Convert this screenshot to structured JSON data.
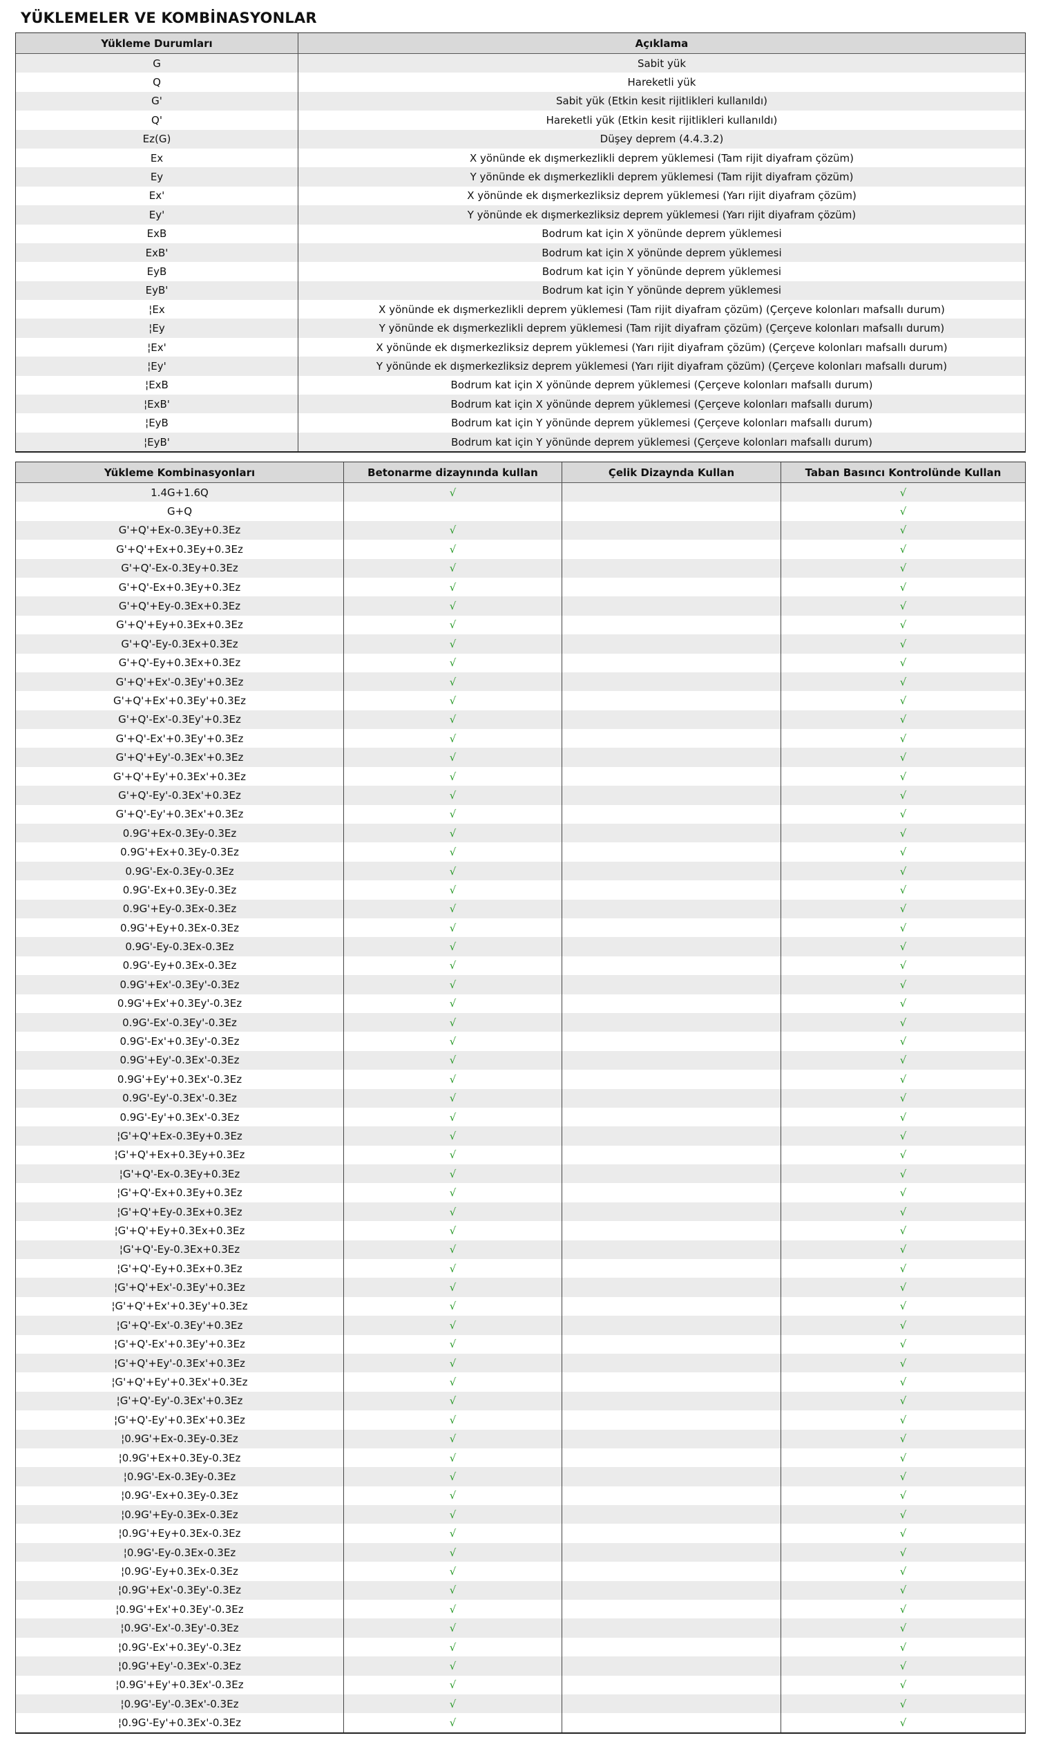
{
  "title": "YÜKLEMELER VE KOMBİNASYONLAR",
  "colors": {
    "check": "#2a9a2a",
    "header_bg": "#d9d9d9",
    "alt_row_bg": "#ebebeb"
  },
  "check_icon": "check-mark-icon",
  "check_glyph": "√",
  "load_cases": {
    "headers": [
      "Yükleme Durumları",
      "Açıklama"
    ],
    "rows": [
      [
        "G",
        "Sabit yük"
      ],
      [
        "Q",
        "Hareketli yük"
      ],
      [
        "G'",
        "Sabit yük (Etkin kesit rijitlikleri kullanıldı)"
      ],
      [
        "Q'",
        "Hareketli yük (Etkin kesit rijitlikleri kullanıldı)"
      ],
      [
        "Ez(G)",
        "Düşey deprem (4.4.3.2)"
      ],
      [
        "Ex",
        "X yönünde ek dışmerkezlikli deprem yüklemesi (Tam rijit diyafram çözüm)"
      ],
      [
        "Ey",
        "Y yönünde ek dışmerkezlikli deprem yüklemesi (Tam rijit diyafram çözüm)"
      ],
      [
        "Ex'",
        "X yönünde ek dışmerkezliksiz deprem yüklemesi (Yarı rijit diyafram çözüm)"
      ],
      [
        "Ey'",
        "Y yönünde ek dışmerkezliksiz deprem yüklemesi (Yarı rijit diyafram çözüm)"
      ],
      [
        "ExB",
        "Bodrum kat için X yönünde deprem yüklemesi"
      ],
      [
        "ExB'",
        "Bodrum kat için X yönünde deprem yüklemesi"
      ],
      [
        "EyB",
        "Bodrum kat için Y yönünde deprem yüklemesi"
      ],
      [
        "EyB'",
        "Bodrum kat için Y yönünde deprem yüklemesi"
      ],
      [
        "¦Ex",
        "X yönünde ek dışmerkezlikli deprem yüklemesi (Tam rijit diyafram çözüm) (Çerçeve kolonları mafsallı durum)"
      ],
      [
        "¦Ey",
        "Y yönünde ek dışmerkezlikli deprem yüklemesi (Tam rijit diyafram çözüm) (Çerçeve kolonları mafsallı durum)"
      ],
      [
        "¦Ex'",
        "X yönünde ek dışmerkezliksiz deprem yüklemesi (Yarı rijit diyafram çözüm) (Çerçeve kolonları mafsallı durum)"
      ],
      [
        "¦Ey'",
        "Y yönünde ek dışmerkezliksiz deprem yüklemesi (Yarı rijit diyafram çözüm) (Çerçeve kolonları mafsallı durum)"
      ],
      [
        "¦ExB",
        "Bodrum kat için X yönünde deprem yüklemesi (Çerçeve kolonları mafsallı durum)"
      ],
      [
        "¦ExB'",
        "Bodrum kat için X yönünde deprem yüklemesi (Çerçeve kolonları mafsallı durum)"
      ],
      [
        "¦EyB",
        "Bodrum kat için Y yönünde deprem yüklemesi (Çerçeve kolonları mafsallı durum)"
      ],
      [
        "¦EyB'",
        "Bodrum kat için Y yönünde deprem yüklemesi (Çerçeve kolonları mafsallı durum)"
      ]
    ]
  },
  "combinations": {
    "headers": [
      "Yükleme Kombinasyonları",
      "Betonarme dizaynında kullan",
      "Çelik  Dizaynda Kullan",
      "Taban Basıncı Kontrolünde Kullan"
    ],
    "rows": [
      {
        "name": "1.4G+1.6Q",
        "beton": true,
        "celik": false,
        "taban": true
      },
      {
        "name": "G+Q",
        "beton": false,
        "celik": false,
        "taban": true
      },
      {
        "name": "G'+Q'+Ex-0.3Ey+0.3Ez",
        "beton": true,
        "celik": false,
        "taban": true
      },
      {
        "name": "G'+Q'+Ex+0.3Ey+0.3Ez",
        "beton": true,
        "celik": false,
        "taban": true
      },
      {
        "name": "G'+Q'-Ex-0.3Ey+0.3Ez",
        "beton": true,
        "celik": false,
        "taban": true
      },
      {
        "name": "G'+Q'-Ex+0.3Ey+0.3Ez",
        "beton": true,
        "celik": false,
        "taban": true
      },
      {
        "name": "G'+Q'+Ey-0.3Ex+0.3Ez",
        "beton": true,
        "celik": false,
        "taban": true
      },
      {
        "name": "G'+Q'+Ey+0.3Ex+0.3Ez",
        "beton": true,
        "celik": false,
        "taban": true
      },
      {
        "name": "G'+Q'-Ey-0.3Ex+0.3Ez",
        "beton": true,
        "celik": false,
        "taban": true
      },
      {
        "name": "G'+Q'-Ey+0.3Ex+0.3Ez",
        "beton": true,
        "celik": false,
        "taban": true
      },
      {
        "name": "G'+Q'+Ex'-0.3Ey'+0.3Ez",
        "beton": true,
        "celik": false,
        "taban": true
      },
      {
        "name": "G'+Q'+Ex'+0.3Ey'+0.3Ez",
        "beton": true,
        "celik": false,
        "taban": true
      },
      {
        "name": "G'+Q'-Ex'-0.3Ey'+0.3Ez",
        "beton": true,
        "celik": false,
        "taban": true
      },
      {
        "name": "G'+Q'-Ex'+0.3Ey'+0.3Ez",
        "beton": true,
        "celik": false,
        "taban": true
      },
      {
        "name": "G'+Q'+Ey'-0.3Ex'+0.3Ez",
        "beton": true,
        "celik": false,
        "taban": true
      },
      {
        "name": "G'+Q'+Ey'+0.3Ex'+0.3Ez",
        "beton": true,
        "celik": false,
        "taban": true
      },
      {
        "name": "G'+Q'-Ey'-0.3Ex'+0.3Ez",
        "beton": true,
        "celik": false,
        "taban": true
      },
      {
        "name": "G'+Q'-Ey'+0.3Ex'+0.3Ez",
        "beton": true,
        "celik": false,
        "taban": true
      },
      {
        "name": "0.9G'+Ex-0.3Ey-0.3Ez",
        "beton": true,
        "celik": false,
        "taban": true
      },
      {
        "name": "0.9G'+Ex+0.3Ey-0.3Ez",
        "beton": true,
        "celik": false,
        "taban": true
      },
      {
        "name": "0.9G'-Ex-0.3Ey-0.3Ez",
        "beton": true,
        "celik": false,
        "taban": true
      },
      {
        "name": "0.9G'-Ex+0.3Ey-0.3Ez",
        "beton": true,
        "celik": false,
        "taban": true
      },
      {
        "name": "0.9G'+Ey-0.3Ex-0.3Ez",
        "beton": true,
        "celik": false,
        "taban": true
      },
      {
        "name": "0.9G'+Ey+0.3Ex-0.3Ez",
        "beton": true,
        "celik": false,
        "taban": true
      },
      {
        "name": "0.9G'-Ey-0.3Ex-0.3Ez",
        "beton": true,
        "celik": false,
        "taban": true
      },
      {
        "name": "0.9G'-Ey+0.3Ex-0.3Ez",
        "beton": true,
        "celik": false,
        "taban": true
      },
      {
        "name": "0.9G'+Ex'-0.3Ey'-0.3Ez",
        "beton": true,
        "celik": false,
        "taban": true
      },
      {
        "name": "0.9G'+Ex'+0.3Ey'-0.3Ez",
        "beton": true,
        "celik": false,
        "taban": true
      },
      {
        "name": "0.9G'-Ex'-0.3Ey'-0.3Ez",
        "beton": true,
        "celik": false,
        "taban": true
      },
      {
        "name": "0.9G'-Ex'+0.3Ey'-0.3Ez",
        "beton": true,
        "celik": false,
        "taban": true
      },
      {
        "name": "0.9G'+Ey'-0.3Ex'-0.3Ez",
        "beton": true,
        "celik": false,
        "taban": true
      },
      {
        "name": "0.9G'+Ey'+0.3Ex'-0.3Ez",
        "beton": true,
        "celik": false,
        "taban": true
      },
      {
        "name": "0.9G'-Ey'-0.3Ex'-0.3Ez",
        "beton": true,
        "celik": false,
        "taban": true
      },
      {
        "name": "0.9G'-Ey'+0.3Ex'-0.3Ez",
        "beton": true,
        "celik": false,
        "taban": true
      },
      {
        "name": "¦G'+Q'+Ex-0.3Ey+0.3Ez",
        "beton": true,
        "celik": false,
        "taban": true
      },
      {
        "name": "¦G'+Q'+Ex+0.3Ey+0.3Ez",
        "beton": true,
        "celik": false,
        "taban": true
      },
      {
        "name": "¦G'+Q'-Ex-0.3Ey+0.3Ez",
        "beton": true,
        "celik": false,
        "taban": true
      },
      {
        "name": "¦G'+Q'-Ex+0.3Ey+0.3Ez",
        "beton": true,
        "celik": false,
        "taban": true
      },
      {
        "name": "¦G'+Q'+Ey-0.3Ex+0.3Ez",
        "beton": true,
        "celik": false,
        "taban": true
      },
      {
        "name": "¦G'+Q'+Ey+0.3Ex+0.3Ez",
        "beton": true,
        "celik": false,
        "taban": true
      },
      {
        "name": "¦G'+Q'-Ey-0.3Ex+0.3Ez",
        "beton": true,
        "celik": false,
        "taban": true
      },
      {
        "name": "¦G'+Q'-Ey+0.3Ex+0.3Ez",
        "beton": true,
        "celik": false,
        "taban": true
      },
      {
        "name": "¦G'+Q'+Ex'-0.3Ey'+0.3Ez",
        "beton": true,
        "celik": false,
        "taban": true
      },
      {
        "name": "¦G'+Q'+Ex'+0.3Ey'+0.3Ez",
        "beton": true,
        "celik": false,
        "taban": true
      },
      {
        "name": "¦G'+Q'-Ex'-0.3Ey'+0.3Ez",
        "beton": true,
        "celik": false,
        "taban": true
      },
      {
        "name": "¦G'+Q'-Ex'+0.3Ey'+0.3Ez",
        "beton": true,
        "celik": false,
        "taban": true
      },
      {
        "name": "¦G'+Q'+Ey'-0.3Ex'+0.3Ez",
        "beton": true,
        "celik": false,
        "taban": true
      },
      {
        "name": "¦G'+Q'+Ey'+0.3Ex'+0.3Ez",
        "beton": true,
        "celik": false,
        "taban": true
      },
      {
        "name": "¦G'+Q'-Ey'-0.3Ex'+0.3Ez",
        "beton": true,
        "celik": false,
        "taban": true
      },
      {
        "name": "¦G'+Q'-Ey'+0.3Ex'+0.3Ez",
        "beton": true,
        "celik": false,
        "taban": true
      },
      {
        "name": "¦0.9G'+Ex-0.3Ey-0.3Ez",
        "beton": true,
        "celik": false,
        "taban": true
      },
      {
        "name": "¦0.9G'+Ex+0.3Ey-0.3Ez",
        "beton": true,
        "celik": false,
        "taban": true
      },
      {
        "name": "¦0.9G'-Ex-0.3Ey-0.3Ez",
        "beton": true,
        "celik": false,
        "taban": true
      },
      {
        "name": "¦0.9G'-Ex+0.3Ey-0.3Ez",
        "beton": true,
        "celik": false,
        "taban": true
      },
      {
        "name": "¦0.9G'+Ey-0.3Ex-0.3Ez",
        "beton": true,
        "celik": false,
        "taban": true
      },
      {
        "name": "¦0.9G'+Ey+0.3Ex-0.3Ez",
        "beton": true,
        "celik": false,
        "taban": true
      },
      {
        "name": "¦0.9G'-Ey-0.3Ex-0.3Ez",
        "beton": true,
        "celik": false,
        "taban": true
      },
      {
        "name": "¦0.9G'-Ey+0.3Ex-0.3Ez",
        "beton": true,
        "celik": false,
        "taban": true
      },
      {
        "name": "¦0.9G'+Ex'-0.3Ey'-0.3Ez",
        "beton": true,
        "celik": false,
        "taban": true
      },
      {
        "name": "¦0.9G'+Ex'+0.3Ey'-0.3Ez",
        "beton": true,
        "celik": false,
        "taban": true
      },
      {
        "name": "¦0.9G'-Ex'-0.3Ey'-0.3Ez",
        "beton": true,
        "celik": false,
        "taban": true
      },
      {
        "name": "¦0.9G'-Ex'+0.3Ey'-0.3Ez",
        "beton": true,
        "celik": false,
        "taban": true
      },
      {
        "name": "¦0.9G'+Ey'-0.3Ex'-0.3Ez",
        "beton": true,
        "celik": false,
        "taban": true
      },
      {
        "name": "¦0.9G'+Ey'+0.3Ex'-0.3Ez",
        "beton": true,
        "celik": false,
        "taban": true
      },
      {
        "name": "¦0.9G'-Ey'-0.3Ex'-0.3Ez",
        "beton": true,
        "celik": false,
        "taban": true
      },
      {
        "name": "¦0.9G'-Ey'+0.3Ex'-0.3Ez",
        "beton": true,
        "celik": false,
        "taban": true
      }
    ]
  }
}
